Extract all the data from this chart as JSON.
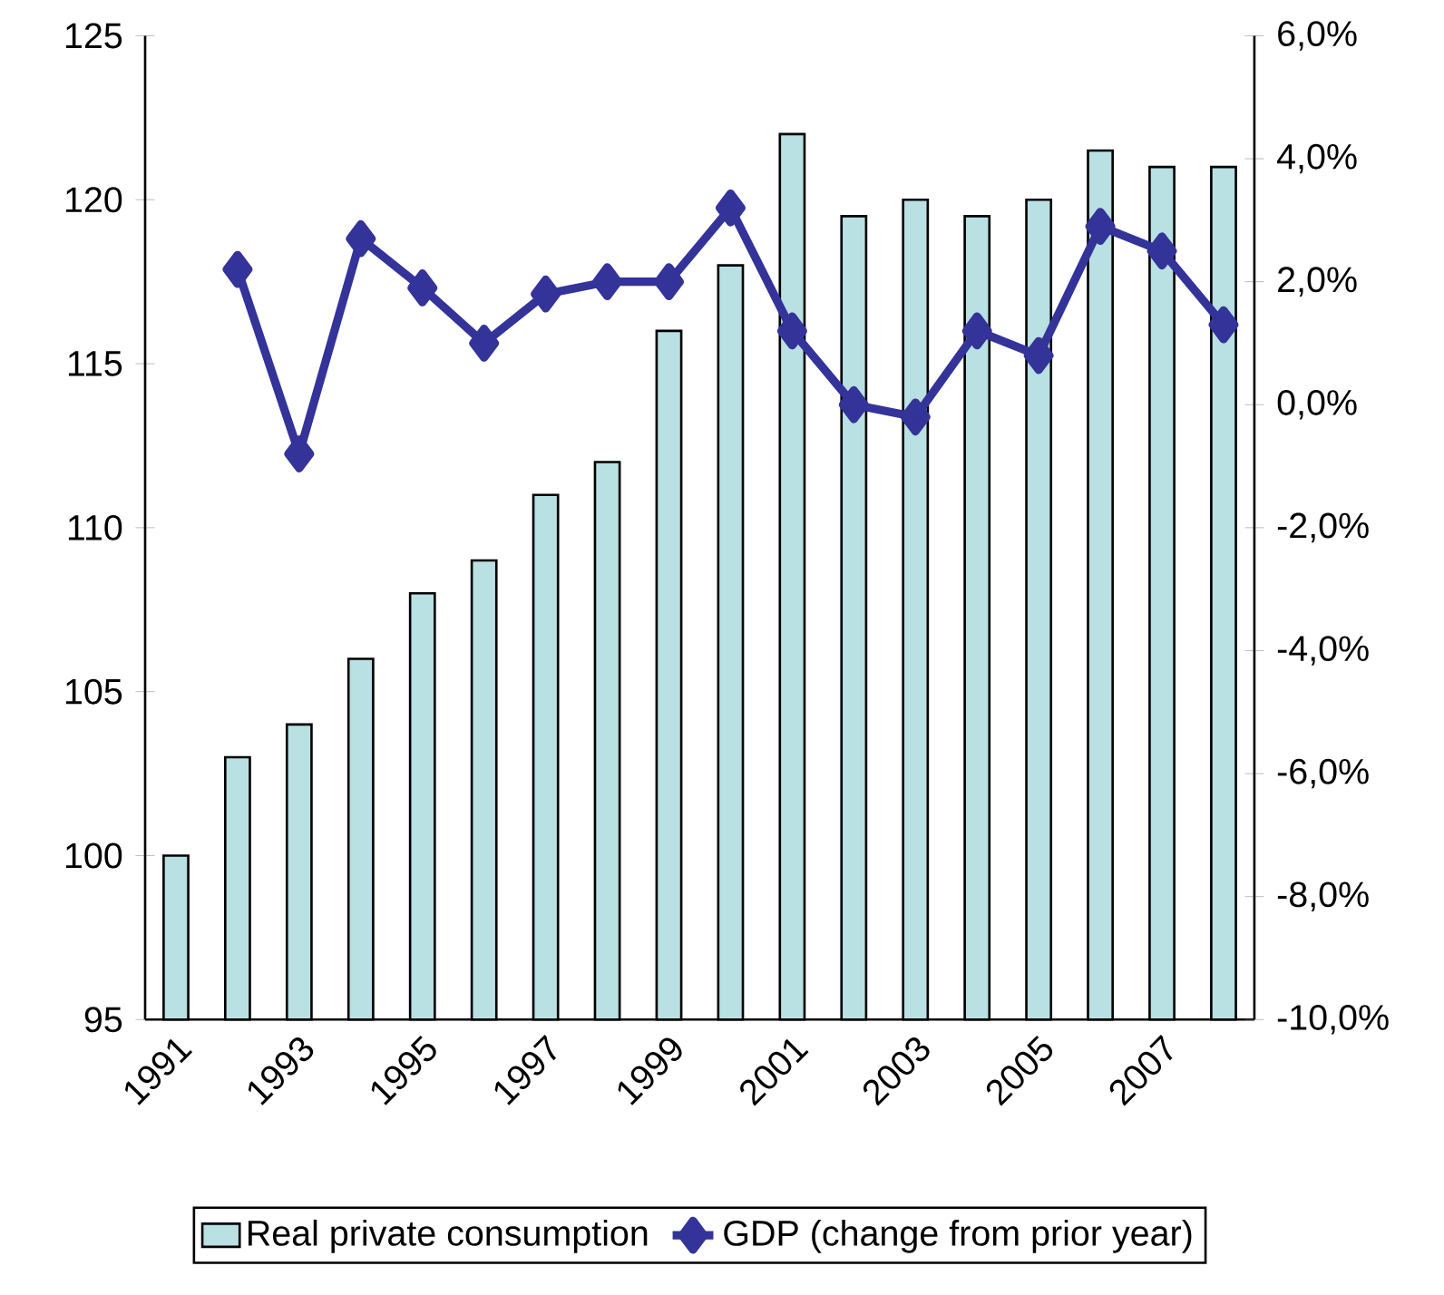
{
  "chart_data": {
    "type": "bar",
    "categories": [
      "1991",
      null,
      "1993",
      null,
      "1995",
      null,
      "1997",
      null,
      "1999",
      null,
      "2001",
      null,
      "2003",
      null,
      "2005",
      null,
      "2007",
      null
    ],
    "series": [
      {
        "name": "Real private consumption",
        "color": "#b9e0e2",
        "values": [
          100,
          103,
          104,
          106,
          108,
          109,
          111,
          112,
          116,
          118,
          122,
          119.5,
          120,
          119.5,
          120,
          121.5,
          121,
          121
        ]
      },
      {
        "name": "GDP (change from prior year)",
        "type": "line",
        "axis": "y2",
        "color": "#333399",
        "marker": "diamond",
        "values": [
          null,
          2.2,
          -0.8,
          2.7,
          1.9,
          1.0,
          1.8,
          2.0,
          2.0,
          3.2,
          1.2,
          0.0,
          -0.2,
          1.2,
          0.8,
          2.9,
          2.5,
          1.3
        ]
      }
    ],
    "ylim": [
      95,
      125
    ],
    "yticks": [
      95,
      100,
      105,
      110,
      115,
      120,
      125
    ],
    "y2lim": [
      -10,
      6
    ],
    "y2ticks": [
      {
        "value": -10,
        "label": "-10,0%"
      },
      {
        "value": -8,
        "label": "-8,0%"
      },
      {
        "value": -6,
        "label": "-6,0%"
      },
      {
        "value": -4,
        "label": "-4,0%"
      },
      {
        "value": -2,
        "label": "-2,0%"
      },
      {
        "value": 0,
        "label": "0,0%"
      },
      {
        "value": 2,
        "label": "2,0%"
      },
      {
        "value": 4,
        "label": "4,0%"
      },
      {
        "value": 6,
        "label": "6,0%"
      }
    ],
    "legend": "bottom"
  }
}
